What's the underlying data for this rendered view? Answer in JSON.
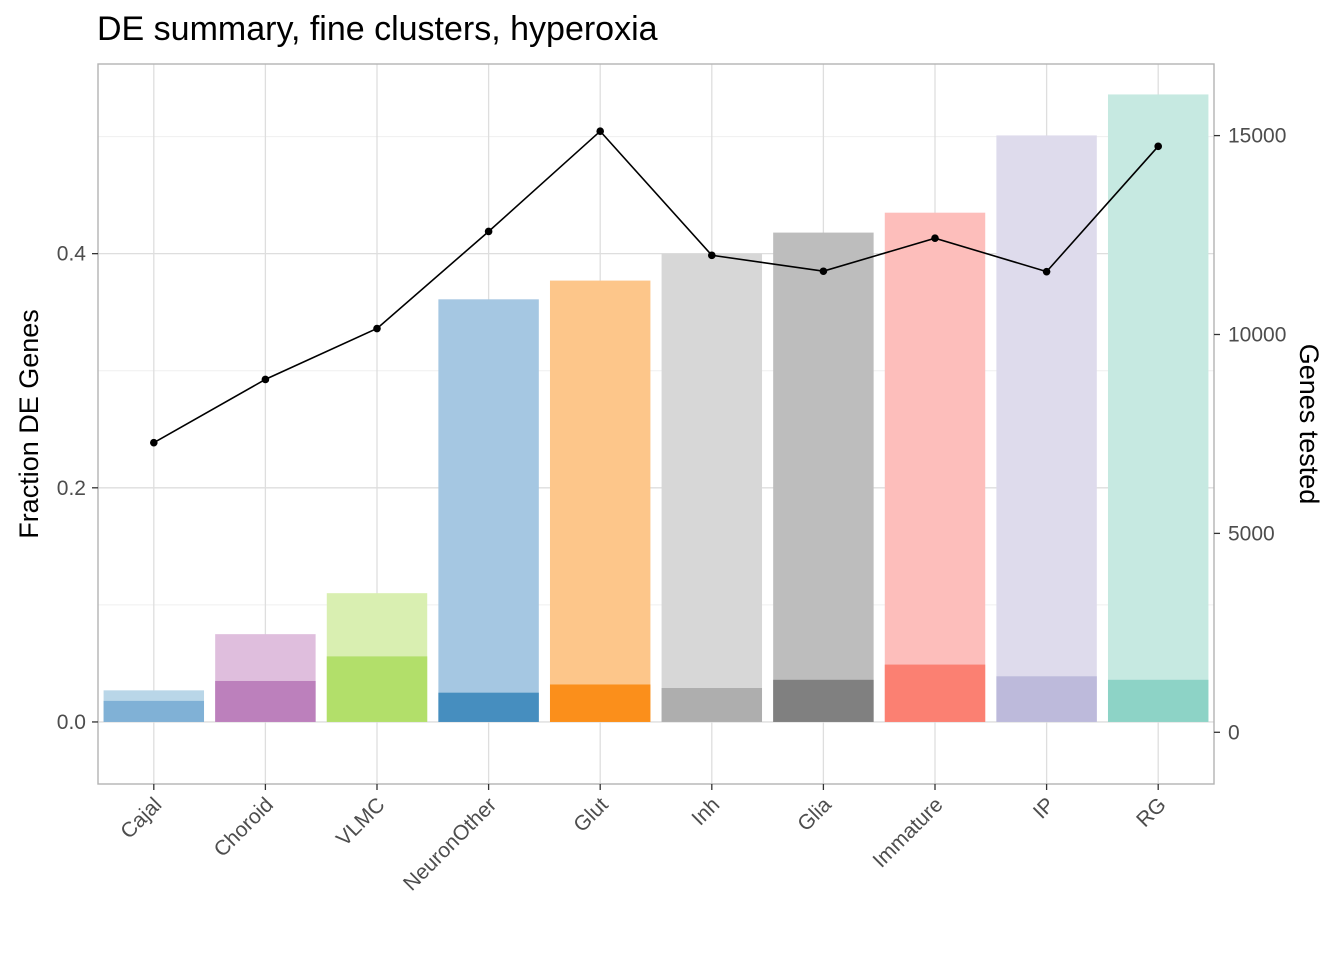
{
  "chart_data": {
    "type": "bar",
    "title": "DE summary, fine clusters, hyperoxia",
    "ylabel": "Fraction DE Genes",
    "y2label": "Genes tested",
    "xlabel": "",
    "ylim": [
      -0.053,
      0.562
    ],
    "y2lim": [
      -1300,
      16800
    ],
    "yticks": [
      "0.0",
      "0.2",
      "0.4"
    ],
    "y2ticks": [
      "0",
      "5000",
      "10000",
      "15000"
    ],
    "categories": [
      "Cajal",
      "Choroid",
      "VLMC",
      "NeuronOther",
      "Glut",
      "Inh",
      "Glia",
      "Immature",
      "IP",
      "RG"
    ],
    "series": [
      {
        "values": [
          0.027,
          0.075,
          0.11,
          0.361,
          0.377,
          0.4,
          0.418,
          0.435,
          0.501,
          0.536
        ]
      },
      {
        "values": [
          0.018,
          0.035,
          0.056,
          0.025,
          0.032,
          0.029,
          0.036,
          0.049,
          0.039,
          0.036
        ]
      },
      {
        "values": [
          7280,
          8870,
          10150,
          12590,
          15110,
          11990,
          11590,
          12420,
          11580,
          14730
        ]
      }
    ],
    "colors": {
      "light": [
        "#b9d6e8",
        "#dfbedd",
        "#d9efb1",
        "#a5c7e2",
        "#fdc68a",
        "#d7d7d7",
        "#bdbdbd",
        "#fdbebb",
        "#dedbec",
        "#c6e9e1"
      ],
      "dark": [
        "#80b1d6",
        "#bc80bc",
        "#b2df6a",
        "#468ebf",
        "#fb8f1b",
        "#aeaeae",
        "#808080",
        "#fb8072",
        "#bdbadb",
        "#8dd3c6"
      ],
      "line": "#000000"
    }
  }
}
